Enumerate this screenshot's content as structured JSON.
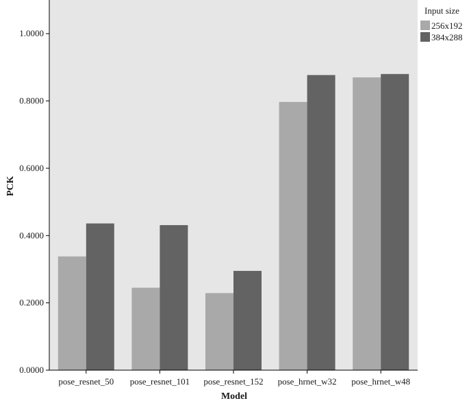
{
  "chart_data": {
    "type": "bar",
    "xlabel": "Model",
    "ylabel": "PCK",
    "ylim": [
      0,
      1.1
    ],
    "yticks": [
      "0.0000",
      "0.2000",
      "0.4000",
      "0.6000",
      "0.8000",
      "1.0000"
    ],
    "categories": [
      "pose_resnet_50",
      "pose_resnet_101",
      "pose_resnet_152",
      "pose_hrnet_w32",
      "pose_hrnet_w48"
    ],
    "series": [
      {
        "name": "256x192",
        "color": "#a9a9a9",
        "values": [
          0.338,
          0.245,
          0.229,
          0.797,
          0.87
        ]
      },
      {
        "name": "384x288",
        "color": "#636363",
        "values": [
          0.436,
          0.431,
          0.295,
          0.877,
          0.88
        ]
      }
    ],
    "legend": {
      "title": "Input size",
      "placement": "top-right"
    },
    "plot_background": "#e6e6e6",
    "grid": false
  }
}
